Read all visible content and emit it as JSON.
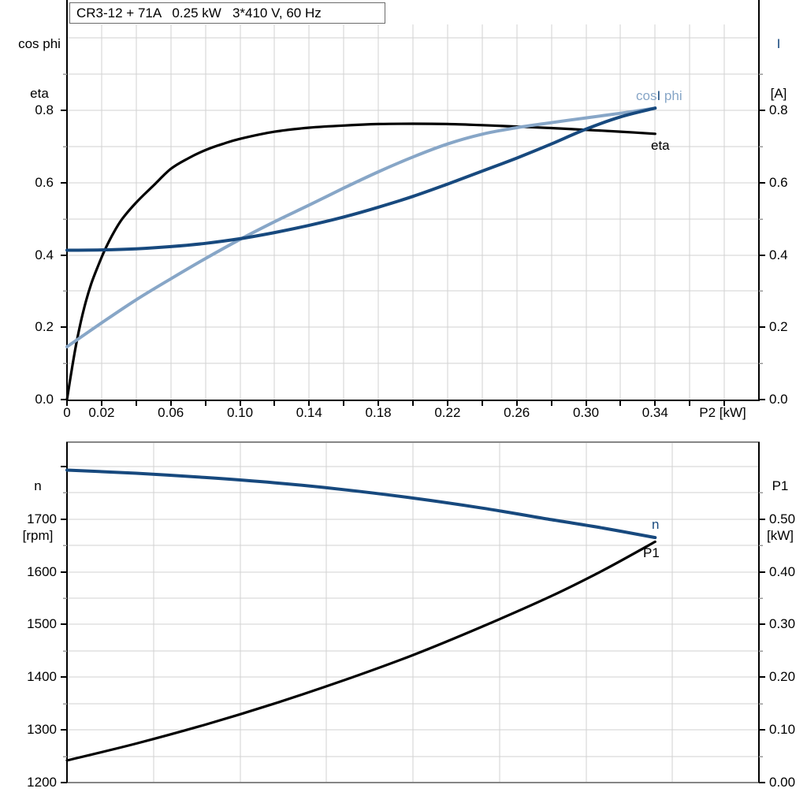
{
  "page": {
    "title": "CR3-12 + 71A   0.25 kW   3*410 V, 60 Hz",
    "top_left_axis": [
      "cos phi",
      "eta"
    ],
    "top_right_axis": [
      "I",
      "[A]"
    ],
    "bottom_left_axis": [
      "n",
      "[rpm]"
    ],
    "bottom_right_axis": [
      "P1",
      "[kW]"
    ],
    "curve_labels": {
      "eta": "eta",
      "n": "n",
      "p1": "P1"
    }
  },
  "colors": {
    "black": "#000000",
    "dark_blue": "#17497E",
    "light_blue": "#87A6C7",
    "grid": "#D2D2D2",
    "minor_tick": "#999999",
    "frame_gray": "#868686",
    "title_border": "#6B6B6B"
  },
  "chart_data": [
    {
      "id": "motor-efficiency-chart",
      "type": "line",
      "title": "CR3-12 + 71A   0.25 kW   3*410 V, 60 Hz",
      "xlabel": "P2 [kW]",
      "xlim": [
        0,
        0.4
      ],
      "x_grid_step": 0.02,
      "x_tick_values": [
        0,
        0.02,
        0.06,
        0.1,
        0.14,
        0.18,
        0.22,
        0.26,
        0.3,
        0.34
      ],
      "x_tick_labels": [
        "0",
        "0.02",
        "0.06",
        "0.10",
        "0.14",
        "0.18",
        "0.22",
        "0.26",
        "0.30",
        "0.34"
      ],
      "left_axis": {
        "label_lines": [
          "cos phi",
          "eta"
        ],
        "tick_values": [
          0.0,
          0.2,
          0.4,
          0.6,
          0.8
        ],
        "tick_labels": [
          "0.0",
          "0.2",
          "0.4",
          "0.6",
          "0.8"
        ],
        "minor_step": 0.1,
        "lim": [
          0,
          1.02
        ]
      },
      "right_axis": {
        "label_lines": [
          "I",
          "[A]"
        ],
        "tick_values": [
          0.0,
          0.2,
          0.4,
          0.6,
          0.8
        ],
        "tick_labels": [
          "0.0",
          "0.2",
          "0.4",
          "0.6",
          "0.8"
        ],
        "minor_step": 0.1,
        "lim": [
          0,
          1.02
        ]
      },
      "legend_position": "inline-curve-labels",
      "grid": true,
      "series": [
        {
          "name": "eta",
          "color_key": "black",
          "points": [
            [
              0,
              0
            ],
            [
              0.003,
              0.09
            ],
            [
              0.006,
              0.17
            ],
            [
              0.01,
              0.255
            ],
            [
              0.014,
              0.32
            ],
            [
              0.018,
              0.37
            ],
            [
              0.022,
              0.415
            ],
            [
              0.027,
              0.462
            ],
            [
              0.032,
              0.5
            ],
            [
              0.04,
              0.545
            ],
            [
              0.05,
              0.592
            ],
            [
              0.06,
              0.638
            ],
            [
              0.07,
              0.667
            ],
            [
              0.08,
              0.69
            ],
            [
              0.09,
              0.707
            ],
            [
              0.1,
              0.721
            ],
            [
              0.12,
              0.741
            ],
            [
              0.14,
              0.752
            ],
            [
              0.16,
              0.758
            ],
            [
              0.18,
              0.762
            ],
            [
              0.2,
              0.763
            ],
            [
              0.22,
              0.762
            ],
            [
              0.24,
              0.759
            ],
            [
              0.26,
              0.755
            ],
            [
              0.28,
              0.751
            ],
            [
              0.3,
              0.746
            ],
            [
              0.32,
              0.741
            ],
            [
              0.34,
              0.735
            ]
          ]
        },
        {
          "name": "cos phi",
          "color_key": "light_blue",
          "points": [
            [
              0,
              0.146
            ],
            [
              0.02,
              0.212
            ],
            [
              0.04,
              0.276
            ],
            [
              0.06,
              0.334
            ],
            [
              0.08,
              0.39
            ],
            [
              0.1,
              0.443
            ],
            [
              0.12,
              0.492
            ],
            [
              0.14,
              0.538
            ],
            [
              0.16,
              0.585
            ],
            [
              0.18,
              0.63
            ],
            [
              0.2,
              0.671
            ],
            [
              0.22,
              0.707
            ],
            [
              0.24,
              0.734
            ],
            [
              0.26,
              0.752
            ],
            [
              0.28,
              0.766
            ],
            [
              0.3,
              0.779
            ],
            [
              0.32,
              0.792
            ],
            [
              0.34,
              0.806
            ]
          ]
        },
        {
          "name": "I",
          "color_key": "dark_blue",
          "points": [
            [
              0,
              0.413
            ],
            [
              0.02,
              0.414
            ],
            [
              0.04,
              0.417
            ],
            [
              0.06,
              0.423
            ],
            [
              0.08,
              0.432
            ],
            [
              0.1,
              0.445
            ],
            [
              0.12,
              0.462
            ],
            [
              0.14,
              0.482
            ],
            [
              0.16,
              0.505
            ],
            [
              0.18,
              0.532
            ],
            [
              0.2,
              0.562
            ],
            [
              0.22,
              0.596
            ],
            [
              0.24,
              0.632
            ],
            [
              0.26,
              0.668
            ],
            [
              0.28,
              0.707
            ],
            [
              0.3,
              0.748
            ],
            [
              0.32,
              0.782
            ],
            [
              0.34,
              0.806
            ]
          ]
        }
      ],
      "curve_label_composite": [
        {
          "text": "cos",
          "color_key": "light_blue"
        },
        {
          "text": "I",
          "color_key": "dark_blue"
        },
        {
          "text": " phi",
          "color_key": "light_blue"
        }
      ]
    },
    {
      "id": "motor-speed-power-chart",
      "type": "line",
      "title": "",
      "xlabel": "",
      "xlim": [
        0,
        0.4
      ],
      "x_grid_step": 0.05,
      "x_tick_values": [],
      "x_tick_labels": [],
      "left_axis": {
        "label_lines": [
          "n",
          "[rpm]"
        ],
        "tick_values": [
          1200,
          1300,
          1400,
          1500,
          1600,
          1700
        ],
        "tick_labels": [
          "1200",
          "1300",
          "1400",
          "1500",
          "1600",
          "1700"
        ],
        "minor_step": 50,
        "lim": [
          1200,
          1846
        ]
      },
      "right_axis": {
        "label_lines": [
          "P1",
          "[kW]"
        ],
        "tick_values": [
          0.0,
          0.1,
          0.2,
          0.3,
          0.4,
          0.5
        ],
        "tick_labels": [
          "0.00",
          "0.10",
          "0.20",
          "0.30",
          "0.40",
          "0.50"
        ],
        "minor_step": 0.05,
        "lim": [
          0,
          0.646
        ]
      },
      "legend_position": "inline-curve-labels",
      "grid": true,
      "series": [
        {
          "name": "n",
          "color_key": "dark_blue",
          "axis": "left",
          "points": [
            [
              0,
              1793
            ],
            [
              0.04,
              1787
            ],
            [
              0.08,
              1779
            ],
            [
              0.12,
              1769
            ],
            [
              0.16,
              1756
            ],
            [
              0.2,
              1740
            ],
            [
              0.24,
              1721
            ],
            [
              0.28,
              1699
            ],
            [
              0.31,
              1683
            ],
            [
              0.34,
              1665
            ]
          ]
        },
        {
          "name": "P1",
          "color_key": "black",
          "axis": "right",
          "points": [
            [
              0,
              0.042
            ],
            [
              0.04,
              0.074
            ],
            [
              0.08,
              0.11
            ],
            [
              0.12,
              0.15
            ],
            [
              0.16,
              0.194
            ],
            [
              0.2,
              0.242
            ],
            [
              0.24,
              0.296
            ],
            [
              0.28,
              0.354
            ],
            [
              0.31,
              0.403
            ],
            [
              0.34,
              0.457
            ]
          ]
        }
      ]
    }
  ]
}
